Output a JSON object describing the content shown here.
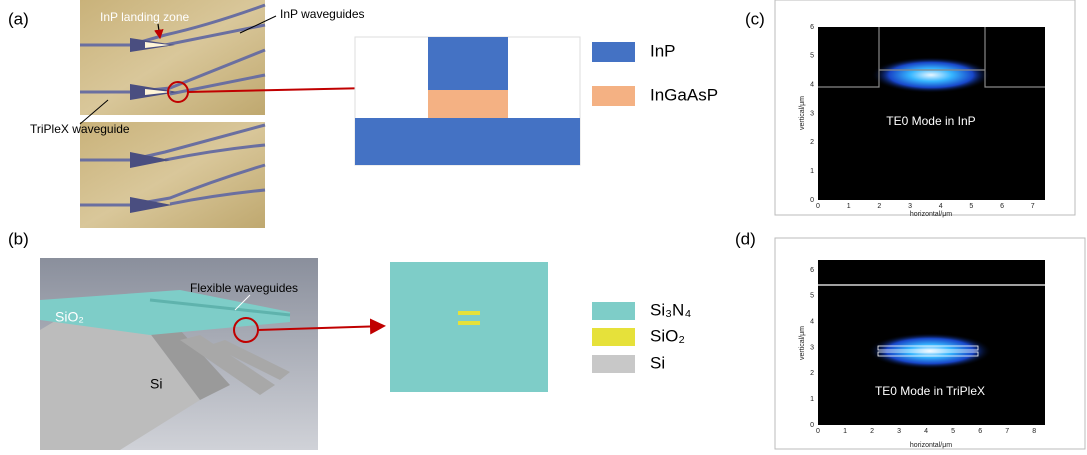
{
  "panel_a": {
    "label": "(a)",
    "landing_zone": "InP landing zone",
    "inp_waveguides": "InP waveguides",
    "triplex_waveguide": "TriPleX waveguide",
    "legend": [
      "InP",
      "InGaAsP"
    ]
  },
  "panel_b": {
    "label": "(b)",
    "flexible_waveguides": "Flexible waveguides",
    "sio2": "SiO₂",
    "si": "Si",
    "legend": [
      "Si₃N₄",
      "SiO₂",
      "Si"
    ]
  },
  "panel_c": {
    "label": "(c)",
    "caption": "TE0 Mode in InP",
    "x_label": "horizontal/μm",
    "y_label": "vertical/μm",
    "xticks": [
      "0",
      "1",
      "2",
      "3",
      "4",
      "5",
      "6",
      "7"
    ],
    "yticks": [
      "0",
      "1",
      "2",
      "3",
      "4",
      "5",
      "6"
    ]
  },
  "panel_d": {
    "label": "(d)",
    "caption": "TE0 Mode in TriPleX",
    "x_label": "horizontal/μm",
    "y_label": "vertical/μm",
    "xticks": [
      "0",
      "1",
      "2",
      "3",
      "4",
      "5",
      "6",
      "7",
      "8"
    ],
    "yticks": [
      "0",
      "1",
      "2",
      "3",
      "4",
      "5",
      "6"
    ]
  }
}
